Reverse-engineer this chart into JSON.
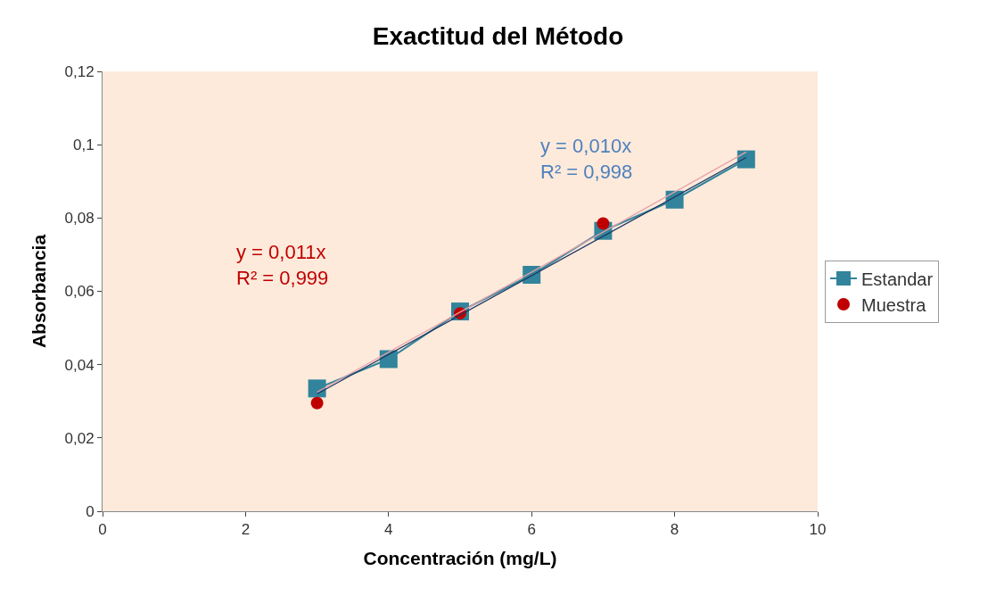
{
  "chart_data": {
    "type": "line",
    "title": "Exactitud del Método",
    "xlabel": "Concentración (mg/L)",
    "ylabel": "Absorbancia",
    "x": [
      3,
      4,
      5,
      6,
      7,
      8,
      9
    ],
    "series": [
      {
        "name": "Estandar",
        "color": "#31849b",
        "marker": "square",
        "values": [
          0.0335,
          0.0415,
          0.0545,
          0.0645,
          0.0765,
          0.085,
          0.096
        ]
      },
      {
        "name": "Muestra",
        "color": "#c00000",
        "type": "scatter",
        "marker": "circle",
        "x": [
          3,
          5,
          7
        ],
        "values": [
          0.0295,
          0.054,
          0.0785
        ]
      },
      {
        "color": "#e8a0a8",
        "type": "line",
        "marker": "none",
        "x": [
          3,
          9
        ],
        "values": [
          0.0325,
          0.098
        ]
      },
      {
        "color": "#1f3864",
        "type": "line",
        "marker": "none",
        "x": [
          3,
          9
        ],
        "values": [
          0.032,
          0.0965
        ]
      }
    ],
    "annotations": [
      "y = 0,010x\nR² = 0,998",
      "y = 0,011x\nR² = 0,999"
    ],
    "xlim": [
      0,
      10
    ],
    "xticks": [
      0,
      2,
      4,
      6,
      8,
      10
    ],
    "ylim": [
      0,
      0.12
    ],
    "yticks": [
      0,
      {
        "value": 0.02,
        "label": "0,02"
      },
      {
        "value": 0.04,
        "label": "0,04"
      },
      {
        "value": 0.06,
        "label": "0,06"
      },
      {
        "value": 0.08,
        "label": "0,08"
      },
      {
        "value": 0.1,
        "label": "0,1"
      },
      {
        "value": 0.12,
        "label": "0,12"
      }
    ],
    "grid": false,
    "legend": "right"
  }
}
